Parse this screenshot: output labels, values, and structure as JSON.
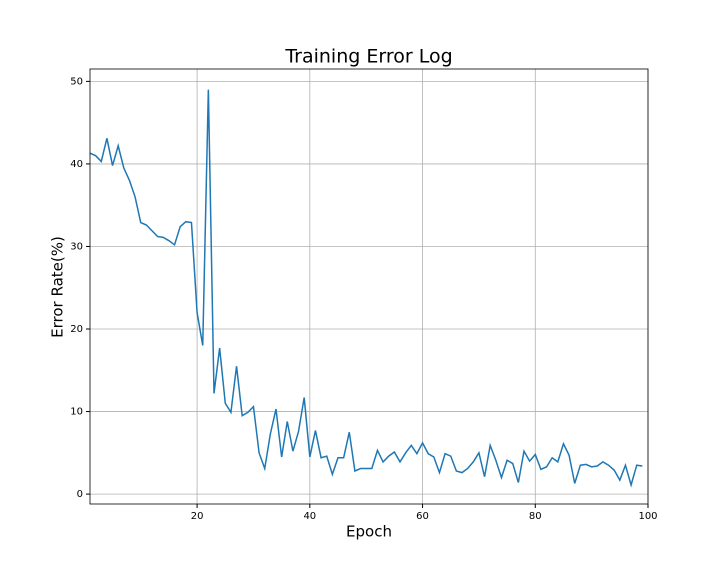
{
  "chart_data": {
    "type": "line",
    "title": "Training Error Log",
    "x_label": "Epoch",
    "y_label": "Error Rate(%)",
    "x": [
      1,
      2,
      3,
      4,
      5,
      6,
      7,
      8,
      9,
      10,
      11,
      12,
      13,
      14,
      15,
      16,
      17,
      18,
      19,
      20,
      21,
      22,
      23,
      24,
      25,
      26,
      27,
      28,
      29,
      30,
      31,
      32,
      33,
      34,
      35,
      36,
      37,
      38,
      39,
      40,
      41,
      42,
      43,
      44,
      45,
      46,
      47,
      48,
      49,
      50,
      51,
      52,
      53,
      54,
      55,
      56,
      57,
      58,
      59,
      60,
      61,
      62,
      63,
      64,
      65,
      66,
      67,
      68,
      69,
      70,
      71,
      72,
      73,
      74,
      75,
      76,
      77,
      78,
      79,
      80,
      81,
      82,
      83,
      84,
      85,
      86,
      87,
      88,
      89,
      90,
      91,
      92,
      93,
      94,
      95,
      96,
      97,
      98,
      99
    ],
    "series": [
      {
        "color": "#1f77b4",
        "values": [
          41.3,
          41.0,
          40.3,
          43.1,
          39.8,
          42.2,
          39.5,
          38.0,
          36.0,
          32.9,
          32.6,
          31.9,
          31.2,
          31.1,
          30.7,
          30.2,
          32.4,
          33.0,
          32.9,
          22.0,
          18.0,
          49.0,
          12.2,
          17.7,
          11.0,
          9.9,
          15.5,
          9.5,
          9.9,
          10.6,
          5.0,
          3.1,
          7.3,
          10.3,
          4.5,
          8.8,
          5.2,
          7.6,
          11.7,
          4.5,
          7.7,
          4.4,
          4.6,
          2.4,
          4.4,
          4.4,
          7.5,
          2.8,
          3.1,
          3.1,
          3.1,
          5.3,
          3.9,
          4.6,
          5.1,
          3.9,
          5.0,
          5.9,
          4.9,
          6.2,
          4.9,
          4.5,
          2.6,
          4.9,
          4.6,
          2.8,
          2.6,
          3.1,
          3.9,
          5.0,
          2.1,
          5.9,
          4.1,
          2.0,
          4.1,
          3.7,
          1.4,
          5.2,
          4.0,
          4.8,
          3.0,
          3.3,
          4.4,
          3.9,
          6.1,
          4.7,
          1.3,
          3.5,
          3.6,
          3.3,
          3.4,
          3.9,
          3.5,
          2.9,
          1.7,
          3.5,
          1.1,
          3.5,
          3.4
        ]
      }
    ],
    "xlim": [
      1,
      100
    ],
    "ylim": [
      -1.2,
      51.5
    ],
    "xticks": [
      20,
      40,
      60,
      80,
      100
    ],
    "yticks": [
      0,
      10,
      20,
      30,
      40,
      50
    ],
    "grid": true
  }
}
